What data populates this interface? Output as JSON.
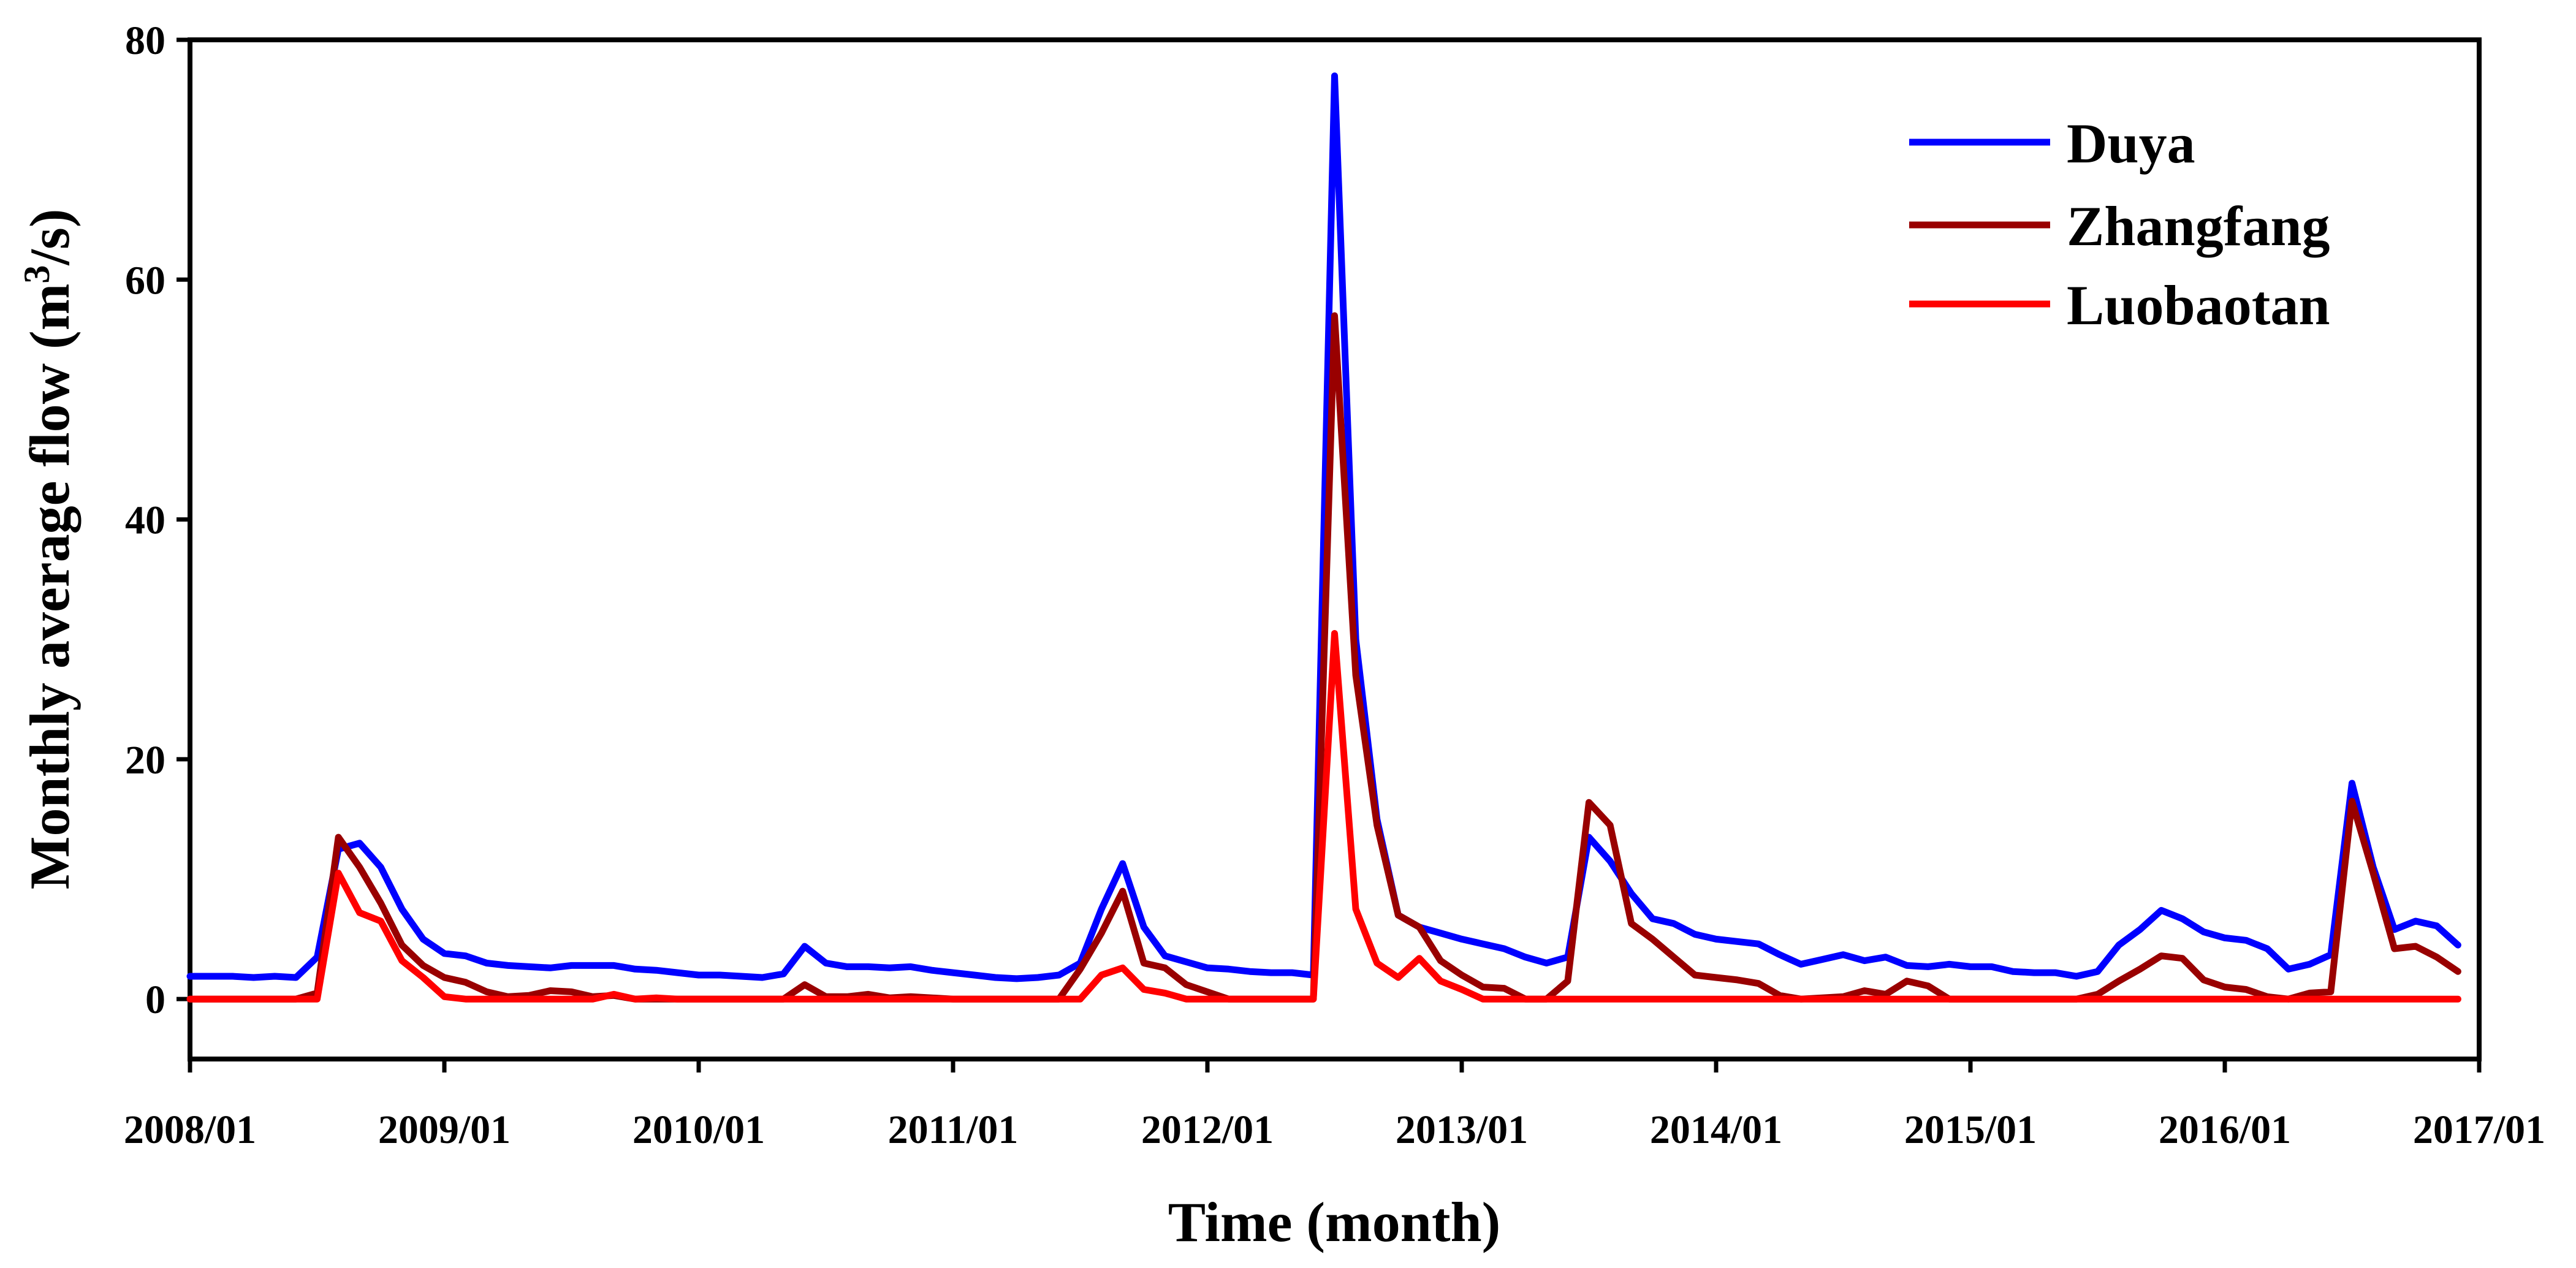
{
  "chart_data": {
    "type": "line",
    "title": "",
    "xlabel": "Time (month)",
    "ylabel": {
      "prefix": "Monthly average flow (m",
      "sup": "3",
      "suffix": "/s)"
    },
    "xlim": [
      0,
      108
    ],
    "ylim": [
      -5,
      80
    ],
    "x_ticks": [
      {
        "value": 0,
        "label": "2008/01"
      },
      {
        "value": 12,
        "label": "2009/01"
      },
      {
        "value": 24,
        "label": "2010/01"
      },
      {
        "value": 36,
        "label": "2011/01"
      },
      {
        "value": 48,
        "label": "2012/01"
      },
      {
        "value": 60,
        "label": "2013/01"
      },
      {
        "value": 72,
        "label": "2014/01"
      },
      {
        "value": 84,
        "label": "2015/01"
      },
      {
        "value": 96,
        "label": "2016/01"
      },
      {
        "value": 108,
        "label": "2017/01"
      }
    ],
    "y_ticks": [
      {
        "value": 0,
        "label": "0"
      },
      {
        "value": 20,
        "label": "20"
      },
      {
        "value": 40,
        "label": "40"
      },
      {
        "value": 60,
        "label": "60"
      },
      {
        "value": 80,
        "label": "80"
      }
    ],
    "grid": false,
    "legend_position": "top-right",
    "x_start": 0,
    "x_step": 1,
    "series": [
      {
        "name": "Duya",
        "color": "#0000ff",
        "values": [
          1.9,
          1.9,
          1.9,
          1.8,
          1.9,
          1.8,
          3.5,
          12.5,
          13,
          11,
          7.5,
          5,
          3.8,
          3.6,
          3,
          2.8,
          2.7,
          2.6,
          2.8,
          2.8,
          2.8,
          2.5,
          2.4,
          2.2,
          2,
          2,
          1.9,
          1.8,
          2.1,
          4.4,
          3,
          2.7,
          2.7,
          2.6,
          2.7,
          2.4,
          2.2,
          2,
          1.8,
          1.7,
          1.8,
          2,
          3,
          7.5,
          11.3,
          6,
          3.6,
          3.1,
          2.6,
          2.5,
          2.3,
          2.2,
          2.2,
          2,
          77,
          30,
          15,
          7,
          6,
          5.5,
          5,
          4.6,
          4.2,
          3.5,
          3,
          3.5,
          13.5,
          11.5,
          8.8,
          6.7,
          6.3,
          5.4,
          5,
          4.8,
          4.6,
          3.7,
          2.9,
          3.3,
          3.7,
          3.2,
          3.5,
          2.8,
          2.7,
          2.9,
          2.7,
          2.7,
          2.3,
          2.2,
          2.2,
          1.9,
          2.3,
          4.5,
          5.8,
          7.4,
          6.7,
          5.6,
          5.1,
          4.9,
          4.2,
          2.5,
          2.9,
          3.7,
          18,
          11,
          5.8,
          6.5,
          6.1,
          4.5
        ]
      },
      {
        "name": "Zhangfang",
        "color": "#990000",
        "values": [
          0,
          0,
          0,
          0,
          0,
          0,
          0.5,
          13.5,
          11,
          8,
          4.5,
          2.8,
          1.8,
          1.4,
          0.6,
          0.2,
          0.3,
          0.7,
          0.6,
          0.2,
          0.3,
          0,
          0,
          0,
          0,
          0,
          0,
          0,
          0,
          1.2,
          0.2,
          0.2,
          0.4,
          0.1,
          0.2,
          0.1,
          0,
          0,
          0,
          0,
          0,
          0,
          2.5,
          5.5,
          9,
          3,
          2.6,
          1.2,
          0.6,
          0,
          0,
          0,
          0,
          0,
          57,
          27,
          14.5,
          7,
          6,
          3.2,
          2,
          1,
          0.9,
          0,
          0,
          1.5,
          16.4,
          14.5,
          6.3,
          5,
          3.5,
          2,
          1.8,
          1.6,
          1.3,
          0.3,
          0,
          0.1,
          0.2,
          0.7,
          0.4,
          1.5,
          1.1,
          0,
          0,
          0,
          0,
          0,
          0,
          0,
          0.4,
          1.5,
          2.5,
          3.6,
          3.4,
          1.6,
          1,
          0.8,
          0.2,
          0,
          0.5,
          0.6,
          16.5,
          10.5,
          4.2,
          4.4,
          3.5,
          2.3
        ]
      },
      {
        "name": "Luobaotan",
        "color": "#ff0000",
        "values": [
          0,
          0,
          0,
          0,
          0,
          0,
          0,
          10.5,
          7.2,
          6.5,
          3.2,
          1.8,
          0.2,
          0,
          0,
          0,
          0,
          0,
          0,
          0,
          0.4,
          0,
          0.1,
          0,
          0,
          0,
          0,
          0,
          0,
          0,
          0,
          0,
          0,
          0,
          0,
          0,
          0,
          0,
          0,
          0,
          0,
          0,
          0,
          2,
          2.6,
          0.8,
          0.5,
          0,
          0,
          0,
          0,
          0,
          0,
          0,
          30.5,
          7.5,
          3,
          1.8,
          3.4,
          1.5,
          0.8,
          0,
          0,
          0,
          0,
          0,
          0,
          0,
          0,
          0,
          0,
          0,
          0,
          0,
          0,
          0,
          0,
          0,
          0,
          0,
          0,
          0,
          0,
          0,
          0,
          0,
          0,
          0,
          0,
          0,
          0,
          0,
          0,
          0,
          0,
          0,
          0,
          0,
          0,
          0,
          0,
          0,
          0,
          0,
          0,
          0,
          0,
          0
        ]
      }
    ]
  }
}
